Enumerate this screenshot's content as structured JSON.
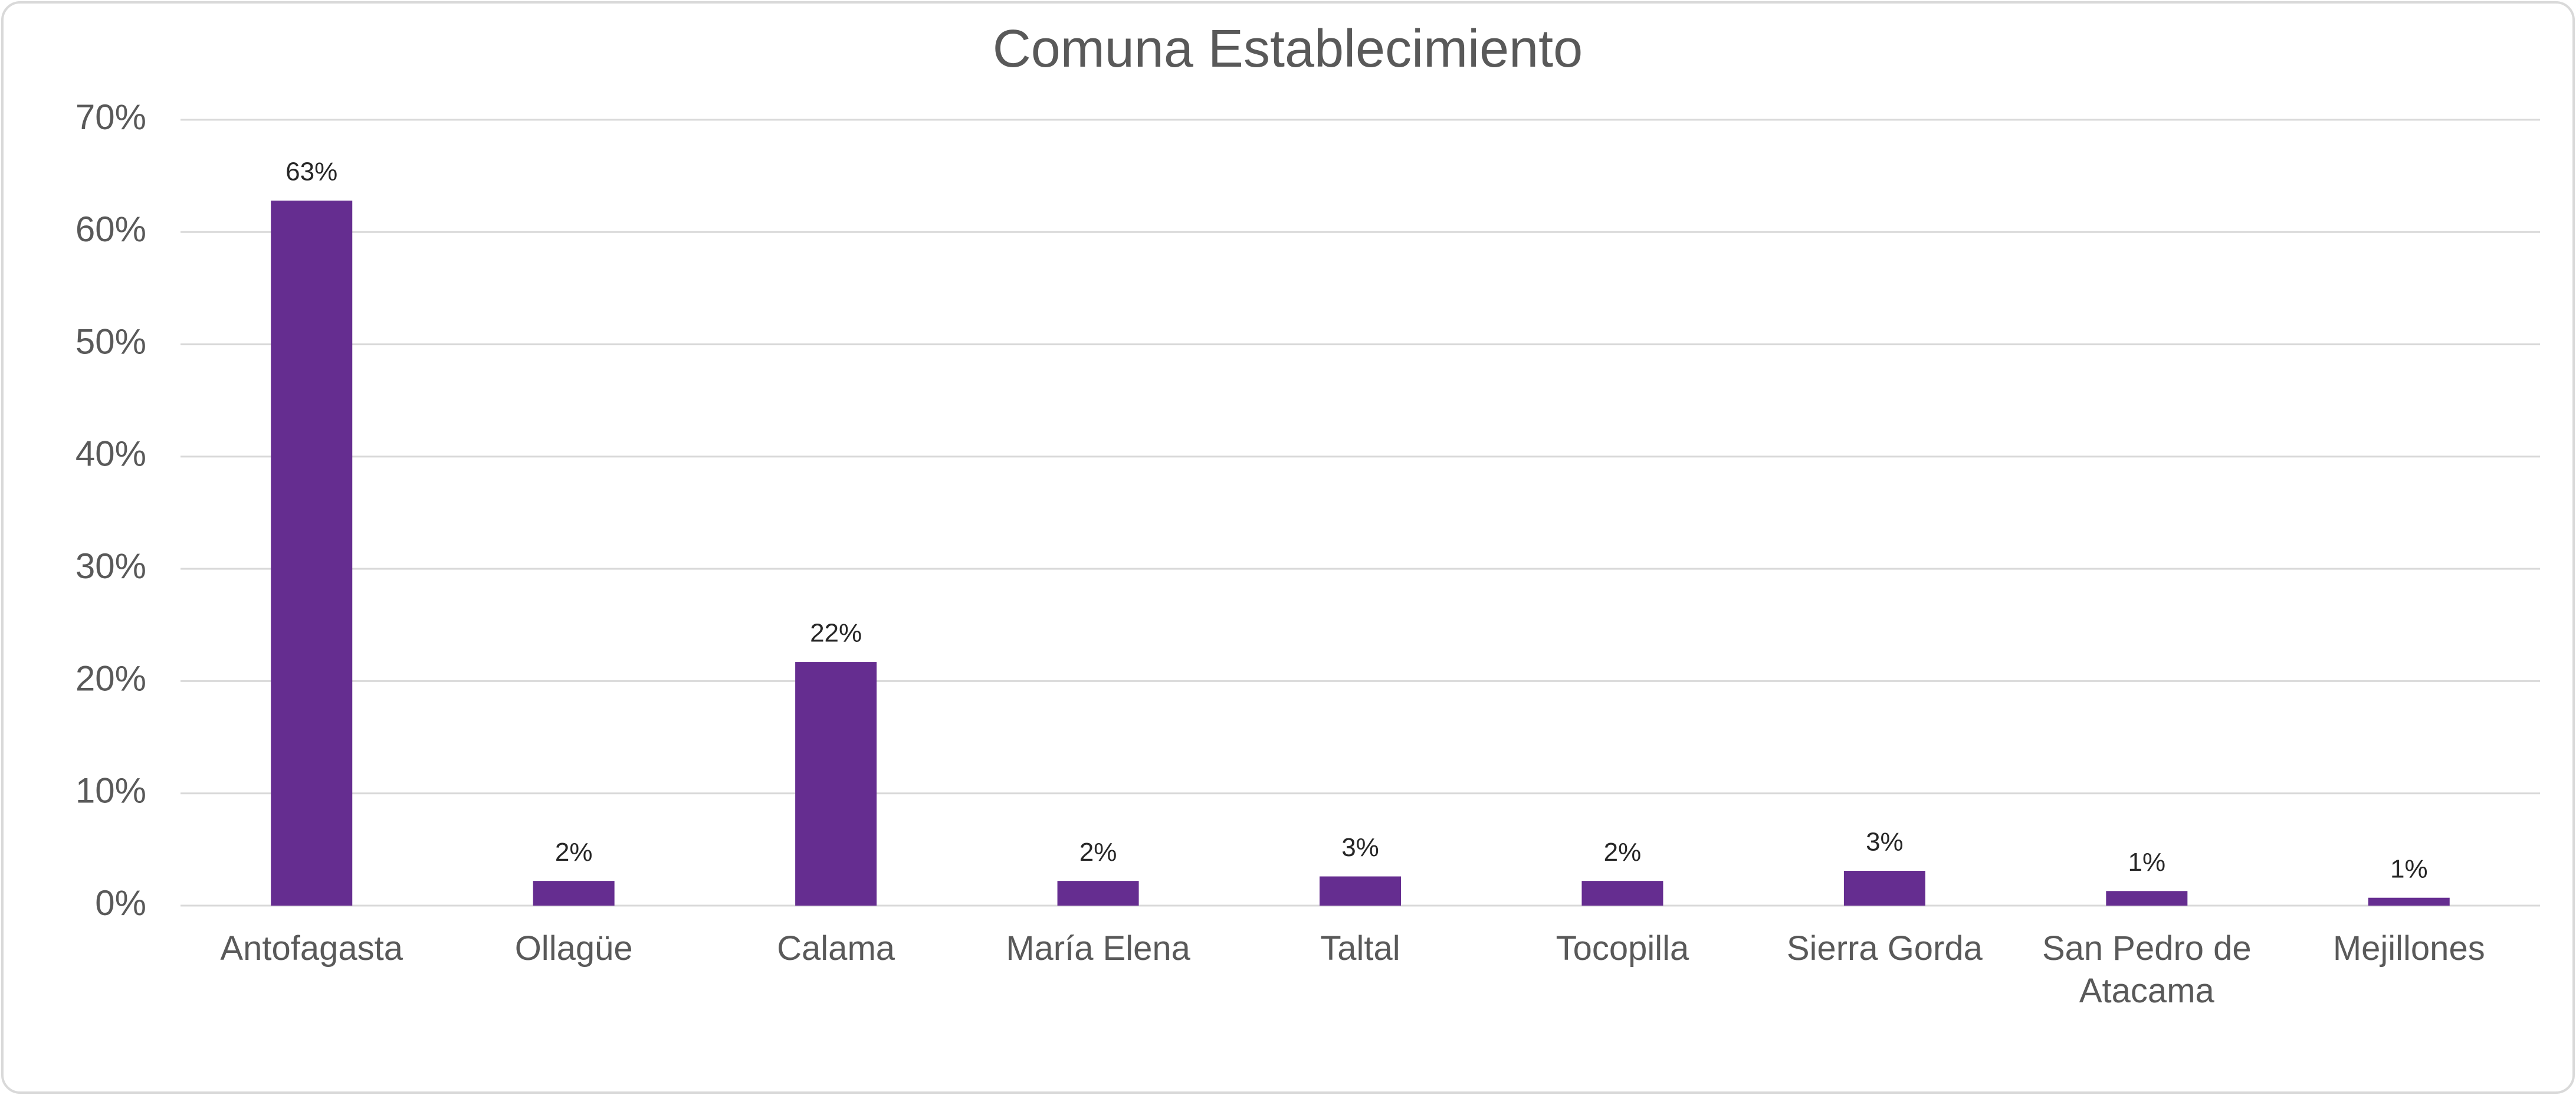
{
  "chart_data": {
    "type": "bar",
    "title": "Comuna Establecimiento",
    "categories": [
      "Antofagasta",
      "Ollagüe",
      "Calama",
      "María Elena",
      "Taltal",
      "Tocopilla",
      "Sierra Gorda",
      "San Pedro de Atacama",
      "Mejillones"
    ],
    "values": [
      62.8,
      2.2,
      21.7,
      2.2,
      2.6,
      2.2,
      3.1,
      1.3,
      0.7
    ],
    "value_labels": [
      "63%",
      "2%",
      "22%",
      "2%",
      "3%",
      "2%",
      "3%",
      "1%",
      "1%"
    ],
    "color": "#652d90",
    "ylim": [
      0,
      70
    ],
    "yticks": [
      {
        "value": 0,
        "label": "0%"
      },
      {
        "value": 10,
        "label": "10%"
      },
      {
        "value": 20,
        "label": "20%"
      },
      {
        "value": 30,
        "label": "30%"
      },
      {
        "value": 40,
        "label": "40%"
      },
      {
        "value": 50,
        "label": "50%"
      },
      {
        "value": 60,
        "label": "60%"
      },
      {
        "value": 70,
        "label": "70%"
      }
    ],
    "grid": true
  }
}
